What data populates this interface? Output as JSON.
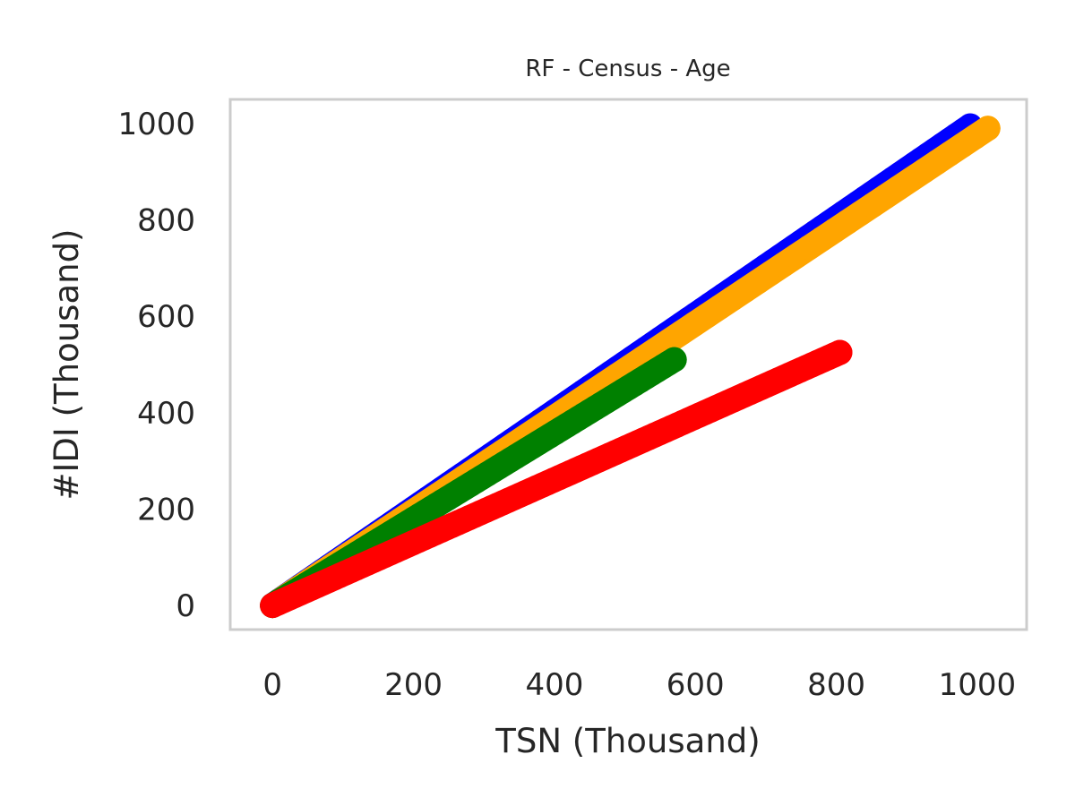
{
  "chart_data": {
    "type": "scatter",
    "title": "RF - Census - Age",
    "xlabel": "TSN (Thousand)",
    "ylabel": "#IDI (Thousand)",
    "xlim": [
      -60,
      1070
    ],
    "ylim": [
      -50,
      1050
    ],
    "xticks": [
      "0",
      "200",
      "400",
      "600",
      "800",
      "1000"
    ],
    "yticks": [
      "0",
      "200",
      "400",
      "600",
      "800",
      "1000"
    ],
    "grid": false,
    "series": [
      {
        "color": "#0000ff",
        "start": [
          0,
          0
        ],
        "end": [
          990,
          995
        ],
        "marker_step": 10
      },
      {
        "color": "#ffa500",
        "start": [
          0,
          0
        ],
        "end": [
          1015,
          990
        ],
        "marker_step": 18
      },
      {
        "color": "#008000",
        "start": [
          0,
          0
        ],
        "end": [
          570,
          510
        ],
        "marker_step": 8
      },
      {
        "color": "#ff0000",
        "start": [
          0,
          0
        ],
        "end": [
          805,
          525
        ],
        "marker_step": 8
      }
    ]
  }
}
